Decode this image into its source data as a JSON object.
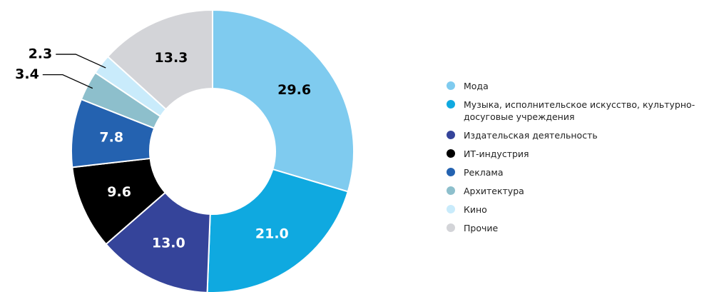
{
  "chart_data": {
    "type": "donut",
    "categories": [
      "Мода",
      "Музыка, исполнительское искусство, культурно-досуговые учреждения",
      "Издательская деятельность",
      "ИТ-индустрия",
      "Реклама",
      "Архитектура",
      "Кино",
      "Прочие"
    ],
    "values": [
      29.6,
      21.0,
      13.0,
      9.6,
      7.8,
      3.4,
      2.3,
      13.3
    ],
    "value_labels": [
      "29.6",
      "21.0",
      "13.0",
      "9.6",
      "7.8",
      "3.4",
      "2.3",
      "13.3"
    ],
    "colors": [
      "#7fcbef",
      "#0fa9e0",
      "#35449a",
      "#000000",
      "#2462b0",
      "#8dbfcc",
      "#c9ebfb",
      "#d3d4d8"
    ],
    "legend": "right"
  }
}
